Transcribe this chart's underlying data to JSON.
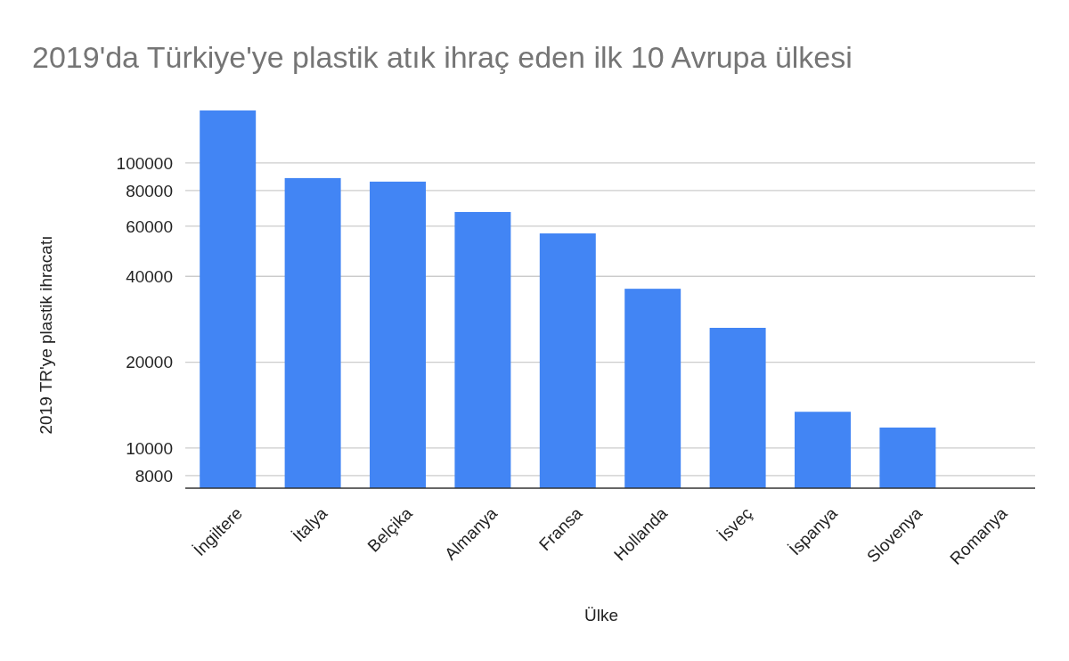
{
  "chart_data": {
    "type": "bar",
    "title": "2019'da Türkiye'ye plastik atık ihraç eden ilk 10 Avrupa ülkesi",
    "xlabel": "Ülke",
    "ylabel": "2019 TR'ye plastik ihracatı",
    "categories": [
      "İngiltere",
      "İtalya",
      "Belçika",
      "Almanya",
      "Fransa",
      "Hollanda",
      "İsveç",
      "İspanya",
      "Slovenya",
      "Romanya"
    ],
    "values": [
      152800,
      88500,
      86000,
      67300,
      56600,
      36200,
      26400,
      13400,
      11800,
      null
    ],
    "color": "#4285f4",
    "log": "y",
    "ylim": [
      7230,
      152800
    ],
    "yticks": [
      8000,
      10000,
      20000,
      40000,
      60000,
      80000,
      100000
    ],
    "grid": "y"
  }
}
